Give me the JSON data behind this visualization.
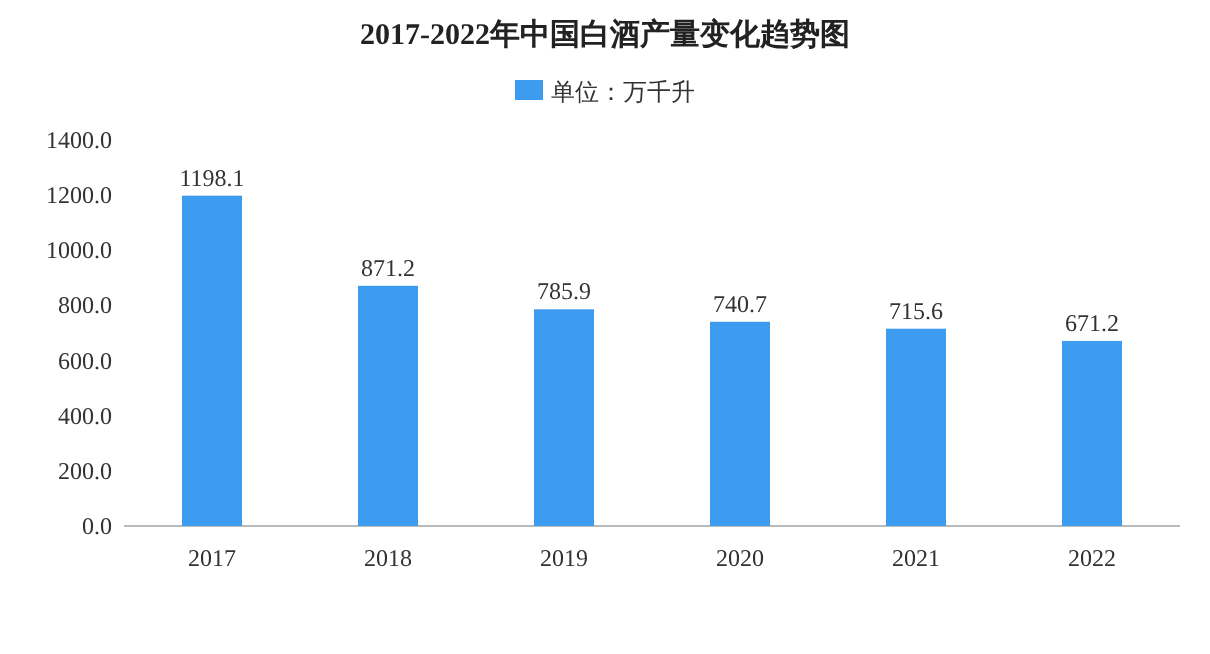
{
  "chart_data": {
    "type": "bar",
    "title": "2017-2022年中国白酒产量变化趋势图",
    "categories": [
      "2017",
      "2018",
      "2019",
      "2020",
      "2021",
      "2022"
    ],
    "series": [
      {
        "name": "单位：万千升",
        "color": "#3d9bf0",
        "values": [
          1198.1,
          871.2,
          785.9,
          740.7,
          715.6,
          671.2
        ]
      }
    ],
    "ylim": [
      0,
      1400
    ],
    "yticks": [
      {
        "value": 0,
        "label": "0.0"
      },
      {
        "value": 200,
        "label": "200.0"
      },
      {
        "value": 400,
        "label": "400.0"
      },
      {
        "value": 600,
        "label": "600.0"
      },
      {
        "value": 800,
        "label": "800.0"
      },
      {
        "value": 1000,
        "label": "1000.0"
      },
      {
        "value": 1200,
        "label": "1200.0"
      },
      {
        "value": 1400,
        "label": "1400.0"
      }
    ],
    "grid": false,
    "legend": "top",
    "data_labels": true
  }
}
